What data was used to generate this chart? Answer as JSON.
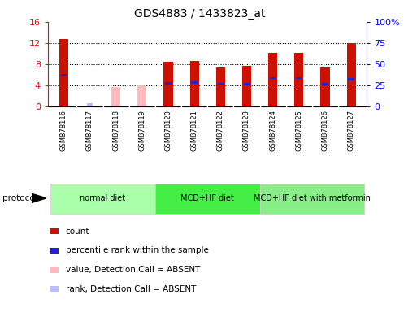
{
  "title": "GDS4883 / 1433823_at",
  "samples": [
    "GSM878116",
    "GSM878117",
    "GSM878118",
    "GSM878119",
    "GSM878120",
    "GSM878121",
    "GSM878122",
    "GSM878123",
    "GSM878124",
    "GSM878125",
    "GSM878126",
    "GSM878127"
  ],
  "count_values": [
    12.8,
    0.0,
    0.0,
    0.0,
    8.4,
    8.5,
    7.4,
    7.6,
    10.1,
    10.1,
    7.4,
    12.0
  ],
  "percentile_values": [
    37.0,
    0.0,
    0.0,
    0.0,
    27.0,
    28.0,
    26.5,
    26.0,
    33.0,
    33.0,
    26.0,
    32.0
  ],
  "absent_count_values": [
    0.0,
    0.0,
    3.6,
    3.9,
    0.0,
    0.0,
    0.0,
    0.0,
    0.0,
    0.0,
    0.0,
    0.0
  ],
  "absent_rank_values": [
    0.0,
    3.0,
    0.0,
    0.0,
    0.0,
    0.0,
    0.0,
    0.0,
    0.0,
    0.0,
    0.0,
    0.0
  ],
  "is_absent": [
    false,
    true,
    true,
    true,
    false,
    false,
    false,
    false,
    false,
    false,
    false,
    false
  ],
  "protocols": [
    {
      "label": "normal diet",
      "start": 0,
      "end": 3,
      "color": "#aaffaa"
    },
    {
      "label": "MCD+HF diet",
      "start": 4,
      "end": 7,
      "color": "#44ee44"
    },
    {
      "label": "MCD+HF diet with metformin",
      "start": 8,
      "end": 11,
      "color": "#88ee88"
    }
  ],
  "ylim_left": [
    0,
    16
  ],
  "ylim_right": [
    0,
    100
  ],
  "left_ticks": [
    0,
    4,
    8,
    12,
    16
  ],
  "right_ticks": [
    0,
    25,
    50,
    75,
    100
  ],
  "right_tick_labels": [
    "0",
    "25",
    "50",
    "75",
    "100%"
  ],
  "bar_color_present": "#cc1100",
  "bar_color_absent_count": "#ffbbbb",
  "bar_color_absent_rank": "#bbbbff",
  "dot_color_present": "#2222cc",
  "bar_width": 0.35,
  "plot_bg": "#ffffff",
  "xtick_bg": "#cccccc",
  "grid_color": "#000000",
  "grid_linestyle": "dotted",
  "grid_linewidth": 0.8
}
